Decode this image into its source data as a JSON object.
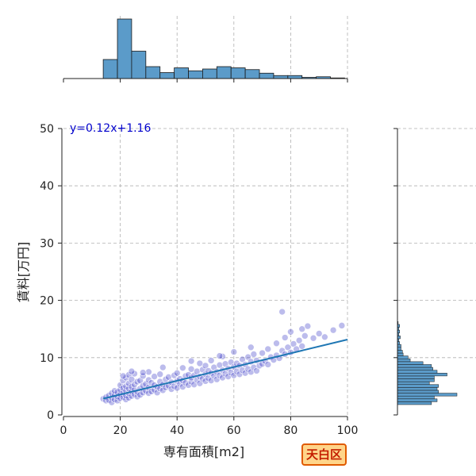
{
  "chart_data": {
    "type": "scatter",
    "title": "",
    "xlabel": "専有面積[m2]",
    "ylabel": "賃料[万円]",
    "xlim": [
      0,
      100
    ],
    "ylim": [
      0,
      50
    ],
    "x_ticks": [
      "0",
      "20",
      "40",
      "60",
      "80",
      "100"
    ],
    "y_ticks": [
      "0",
      "10",
      "20",
      "30",
      "40",
      "50"
    ],
    "grid": true,
    "regression": {
      "label": "y=0.12x+1.16",
      "slope": 0.12,
      "intercept": 1.16,
      "color": "#1f77b4",
      "label_color": "#0000cc"
    },
    "scatter_color": "#4040c8",
    "hist_color": "#5b9bc9",
    "x_hist": {
      "bin_start": 14,
      "bin_width": 5,
      "counts": [
        32,
        100,
        46,
        20,
        10,
        18,
        13,
        16,
        20,
        18,
        15,
        9,
        5,
        5,
        2,
        3,
        1
      ]
    },
    "y_hist": {
      "bin_start": 1.8,
      "bin_width": 0.5,
      "counts": [
        48,
        56,
        52,
        84,
        58,
        56,
        58,
        45,
        52,
        52,
        70,
        56,
        50,
        48,
        36,
        18,
        15,
        8,
        7,
        5,
        5,
        3,
        2,
        4,
        2,
        3,
        2,
        3,
        1
      ]
    },
    "points": [
      [
        14,
        2.8
      ],
      [
        15,
        2.5
      ],
      [
        15,
        3.1
      ],
      [
        16,
        2.6
      ],
      [
        16,
        3.4
      ],
      [
        17,
        2.2
      ],
      [
        17,
        3.0
      ],
      [
        17,
        3.8
      ],
      [
        18,
        2.7
      ],
      [
        18,
        3.5
      ],
      [
        18,
        4.2
      ],
      [
        19,
        2.5
      ],
      [
        19,
        3.2
      ],
      [
        19,
        4.0
      ],
      [
        20,
        2.9
      ],
      [
        20,
        3.6
      ],
      [
        20,
        4.4
      ],
      [
        20,
        5.2
      ],
      [
        21,
        3.1
      ],
      [
        21,
        3.9
      ],
      [
        21,
        4.7
      ],
      [
        21,
        6.0
      ],
      [
        22,
        2.7
      ],
      [
        22,
        3.4
      ],
      [
        22,
        4.2
      ],
      [
        22,
        5.0
      ],
      [
        22,
        6.5
      ],
      [
        23,
        3.0
      ],
      [
        23,
        3.8
      ],
      [
        23,
        4.6
      ],
      [
        23,
        5.5
      ],
      [
        23,
        7.0
      ],
      [
        24,
        3.3
      ],
      [
        24,
        4.1
      ],
      [
        24,
        4.9
      ],
      [
        24,
        6.2
      ],
      [
        25,
        3.6
      ],
      [
        25,
        4.4
      ],
      [
        25,
        5.3
      ],
      [
        25,
        7.2
      ],
      [
        26,
        3.2
      ],
      [
        26,
        4.0
      ],
      [
        26,
        5.8
      ],
      [
        27,
        3.5
      ],
      [
        27,
        4.6
      ],
      [
        27,
        6.0
      ],
      [
        28,
        3.9
      ],
      [
        28,
        5.1
      ],
      [
        28,
        6.8
      ],
      [
        29,
        4.2
      ],
      [
        29,
        5.4
      ],
      [
        30,
        3.8
      ],
      [
        30,
        4.8
      ],
      [
        30,
        6.1
      ],
      [
        30,
        7.5
      ],
      [
        31,
        4.1
      ],
      [
        31,
        5.6
      ],
      [
        32,
        4.4
      ],
      [
        32,
        5.2
      ],
      [
        32,
        6.7
      ],
      [
        33,
        3.9
      ],
      [
        33,
        4.9
      ],
      [
        34,
        4.6
      ],
      [
        34,
        5.8
      ],
      [
        34,
        7.1
      ],
      [
        35,
        4.3
      ],
      [
        35,
        5.3
      ],
      [
        36,
        4.8
      ],
      [
        36,
        6.2
      ],
      [
        37,
        5.1
      ],
      [
        37,
        6.6
      ],
      [
        38,
        4.5
      ],
      [
        38,
        5.7
      ],
      [
        39,
        5.0
      ],
      [
        39,
        6.9
      ],
      [
        40,
        4.7
      ],
      [
        40,
        5.9
      ],
      [
        40,
        7.3
      ],
      [
        41,
        5.4
      ],
      [
        41,
        6.3
      ],
      [
        42,
        4.9
      ],
      [
        42,
        6.0
      ],
      [
        42,
        8.2
      ],
      [
        43,
        5.6
      ],
      [
        43,
        6.8
      ],
      [
        44,
        5.2
      ],
      [
        44,
        7.0
      ],
      [
        45,
        5.8
      ],
      [
        45,
        6.5
      ],
      [
        45,
        8.0
      ],
      [
        46,
        5.3
      ],
      [
        46,
        6.9
      ],
      [
        47,
        6.1
      ],
      [
        47,
        7.6
      ],
      [
        48,
        5.5
      ],
      [
        48,
        6.7
      ],
      [
        48,
        9.0
      ],
      [
        49,
        6.3
      ],
      [
        49,
        7.9
      ],
      [
        50,
        5.9
      ],
      [
        50,
        7.1
      ],
      [
        50,
        8.6
      ],
      [
        51,
        6.4
      ],
      [
        51,
        7.7
      ],
      [
        52,
        6.0
      ],
      [
        52,
        7.3
      ],
      [
        52,
        9.5
      ],
      [
        53,
        6.8
      ],
      [
        53,
        8.3
      ],
      [
        54,
        6.2
      ],
      [
        54,
        7.5
      ],
      [
        55,
        6.9
      ],
      [
        55,
        8.7
      ],
      [
        56,
        6.5
      ],
      [
        56,
        7.8
      ],
      [
        56,
        10.2
      ],
      [
        57,
        7.2
      ],
      [
        57,
        8.9
      ],
      [
        58,
        6.7
      ],
      [
        58,
        8.1
      ],
      [
        59,
        7.4
      ],
      [
        59,
        9.2
      ],
      [
        60,
        6.9
      ],
      [
        60,
        8.4
      ],
      [
        60,
        11.0
      ],
      [
        61,
        7.6
      ],
      [
        61,
        9.0
      ],
      [
        62,
        7.1
      ],
      [
        62,
        8.6
      ],
      [
        63,
        7.8
      ],
      [
        63,
        9.7
      ],
      [
        64,
        7.3
      ],
      [
        64,
        8.8
      ],
      [
        65,
        8.0
      ],
      [
        65,
        10.1
      ],
      [
        66,
        7.5
      ],
      [
        66,
        9.3
      ],
      [
        67,
        8.3
      ],
      [
        67,
        10.6
      ],
      [
        68,
        7.7
      ],
      [
        68,
        9.5
      ],
      [
        69,
        8.6
      ],
      [
        70,
        8.9
      ],
      [
        70,
        10.8
      ],
      [
        71,
        9.4
      ],
      [
        72,
        8.8
      ],
      [
        72,
        11.5
      ],
      [
        73,
        10.1
      ],
      [
        74,
        9.6
      ],
      [
        75,
        10.4
      ],
      [
        75,
        12.5
      ],
      [
        76,
        9.9
      ],
      [
        77,
        11.2
      ],
      [
        78,
        10.6
      ],
      [
        78,
        13.5
      ],
      [
        79,
        11.8
      ],
      [
        80,
        10.9
      ],
      [
        80,
        14.5
      ],
      [
        81,
        12.4
      ],
      [
        82,
        11.5
      ],
      [
        83,
        13.0
      ],
      [
        84,
        12.0
      ],
      [
        85,
        13.8
      ],
      [
        86,
        15.5
      ],
      [
        88,
        13.4
      ],
      [
        90,
        14.2
      ],
      [
        92,
        13.6
      ],
      [
        95,
        14.8
      ],
      [
        98,
        15.6
      ],
      [
        84,
        15.0
      ],
      [
        77,
        18.0
      ],
      [
        66,
        11.8
      ],
      [
        55,
        10.3
      ],
      [
        45,
        9.4
      ],
      [
        35,
        8.3
      ],
      [
        28,
        7.4
      ],
      [
        24,
        7.6
      ],
      [
        21,
        6.8
      ]
    ]
  },
  "badge": {
    "label": "天白区",
    "bg_color": "#ffd58a",
    "border_color": "#e05a00",
    "text_color": "#c41e00"
  }
}
